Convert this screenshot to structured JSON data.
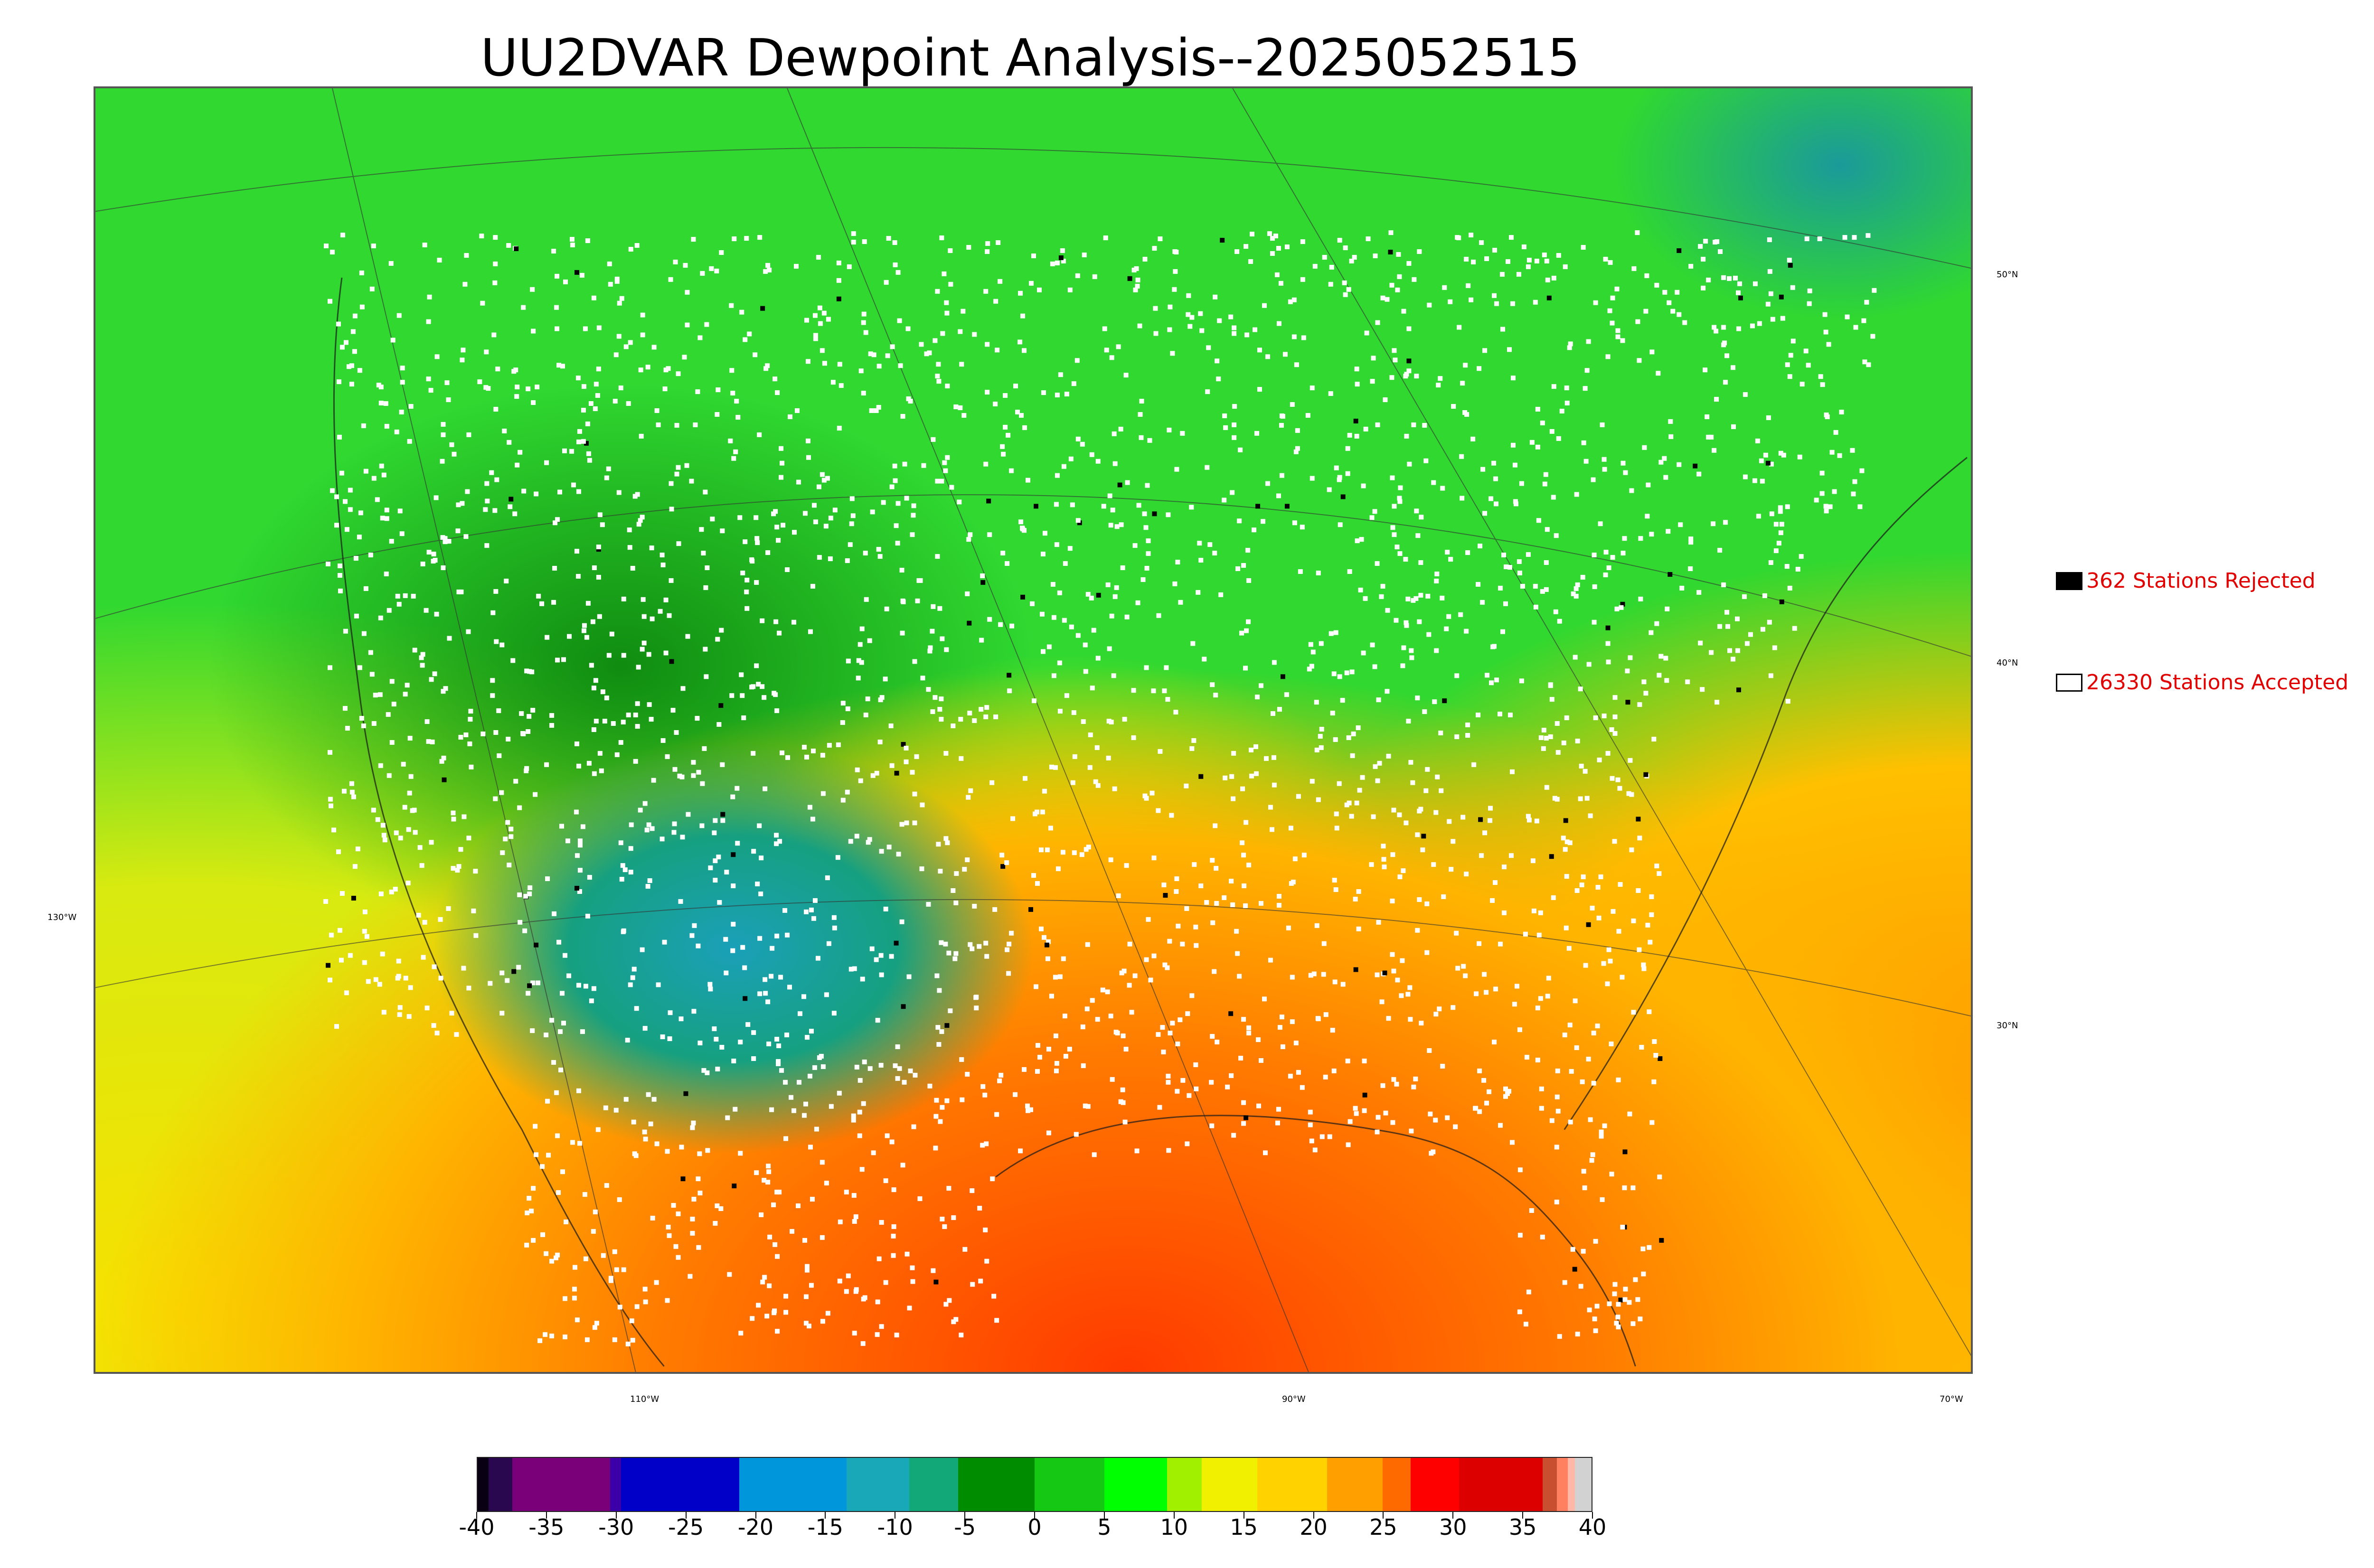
{
  "title": "UU2DVAR Dewpoint Analysis--2025052515",
  "map": {
    "lat_labels": [
      "50°N",
      "40°N",
      "30°N"
    ],
    "lon_labels": [
      "130°W",
      "110°W",
      "90°W",
      "70°W"
    ]
  },
  "legend": {
    "rejected": {
      "text": "362 Stations Rejected",
      "swatch": "#000000"
    },
    "accepted": {
      "text": "26330 Stations Accepted",
      "swatch": "#ffffff"
    }
  },
  "colorbar": {
    "min": -40,
    "max": 40,
    "tick_labels": [
      "-40",
      "-35",
      "-30",
      "-25",
      "-20",
      "-15",
      "-10",
      "-5",
      "0",
      "5",
      "10",
      "15",
      "20",
      "25",
      "30",
      "35",
      "40"
    ],
    "tick_values": [
      -40,
      -35,
      -30,
      -25,
      -20,
      -15,
      -10,
      -5,
      0,
      5,
      10,
      15,
      20,
      25,
      30,
      35,
      40
    ],
    "segments": [
      {
        "from": -40,
        "to": -39.2,
        "color": "#0a0014"
      },
      {
        "from": -39.2,
        "to": -37.5,
        "color": "#2a0850"
      },
      {
        "from": -37.5,
        "to": -30.5,
        "color": "#7a007a"
      },
      {
        "from": -30.5,
        "to": -29.7,
        "color": "#3c00a8"
      },
      {
        "from": -29.7,
        "to": -21.2,
        "color": "#0000c8"
      },
      {
        "from": -21.2,
        "to": -13.5,
        "color": "#0096dc"
      },
      {
        "from": -13.5,
        "to": -9,
        "color": "#18a8b8"
      },
      {
        "from": -9,
        "to": -5.5,
        "color": "#12a878"
      },
      {
        "from": -5.5,
        "to": 0,
        "color": "#008c00"
      },
      {
        "from": 0,
        "to": 5,
        "color": "#14c814"
      },
      {
        "from": 5,
        "to": 9.5,
        "color": "#00ff00"
      },
      {
        "from": 9.5,
        "to": 12,
        "color": "#a0f000"
      },
      {
        "from": 12,
        "to": 16,
        "color": "#f0f000"
      },
      {
        "from": 16,
        "to": 21,
        "color": "#ffd200"
      },
      {
        "from": 21,
        "to": 25,
        "color": "#ffa000"
      },
      {
        "from": 25,
        "to": 27,
        "color": "#ff6a00"
      },
      {
        "from": 27,
        "to": 30.5,
        "color": "#ff0000"
      },
      {
        "from": 30.5,
        "to": 36.5,
        "color": "#dc0000"
      },
      {
        "from": 36.5,
        "to": 37.5,
        "color": "#c85030"
      },
      {
        "from": 37.5,
        "to": 38.3,
        "color": "#ff8060"
      },
      {
        "from": 38.3,
        "to": 38.8,
        "color": "#ffb8a8"
      },
      {
        "from": 38.8,
        "to": 40,
        "color": "#d2d2d2"
      }
    ]
  }
}
